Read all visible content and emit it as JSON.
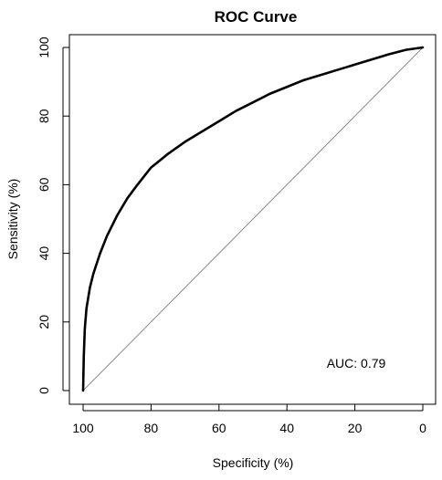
{
  "chart_data": {
    "type": "line",
    "title": "ROC Curve",
    "xlabel": "Specificity (%)",
    "ylabel": "Sensitivity (%)",
    "xlim": [
      100,
      0
    ],
    "ylim": [
      0,
      100
    ],
    "x_ticks": [
      "100",
      "80",
      "60",
      "40",
      "20",
      "0"
    ],
    "y_ticks": [
      "0",
      "20",
      "40",
      "60",
      "80",
      "100"
    ],
    "x_reversed": true,
    "grid": false,
    "annotation": "AUC: 0.79",
    "series": [
      {
        "style": "thick-black",
        "x": [
          100,
          99.8,
          99.5,
          99,
          98,
          97,
          96,
          95,
          93,
          90,
          87,
          84,
          80,
          75,
          70,
          65,
          60,
          55,
          50,
          45,
          40,
          35,
          30,
          25,
          20,
          15,
          10,
          5,
          0
        ],
        "y": [
          0,
          10,
          18,
          24,
          30,
          34,
          37,
          40,
          45,
          51,
          56,
          60,
          65,
          69,
          72.5,
          75.5,
          78.5,
          81.5,
          84,
          86.5,
          88.5,
          90.5,
          92,
          93.5,
          95,
          96.5,
          98,
          99.3,
          100
        ]
      },
      {
        "style": "thin-gray-diagonal",
        "x": [
          100,
          0
        ],
        "y": [
          0,
          100
        ]
      }
    ]
  }
}
